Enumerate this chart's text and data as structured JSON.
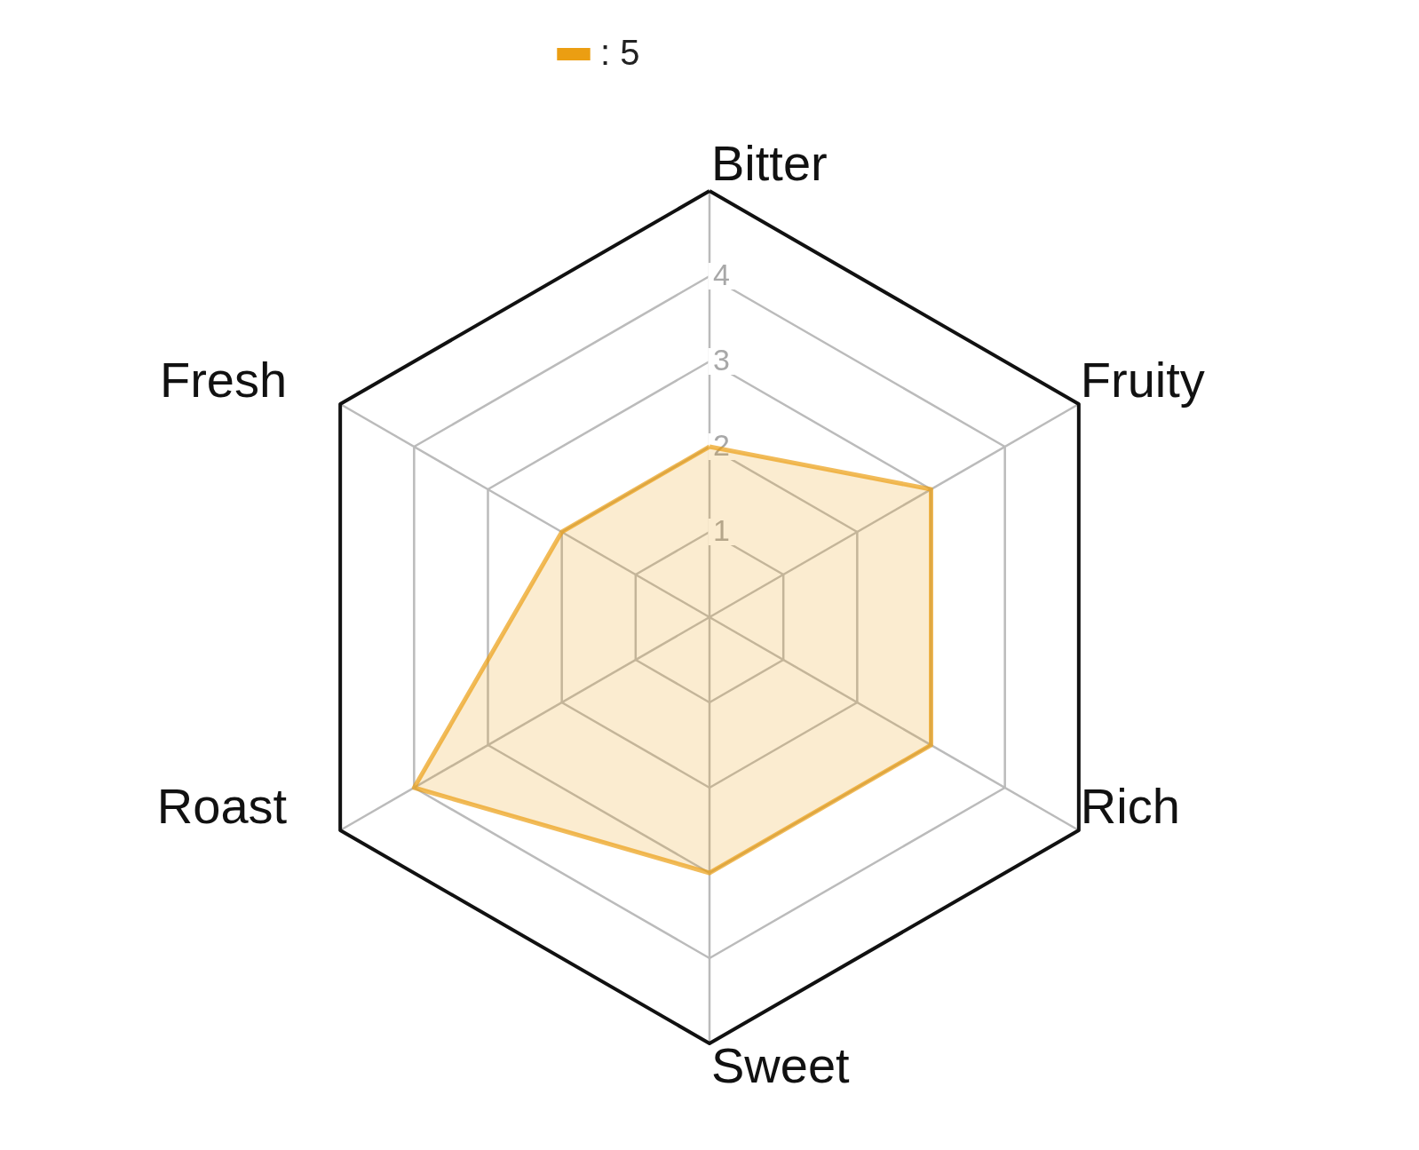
{
  "chart_data": {
    "type": "radar",
    "categories": [
      "Bitter",
      "Fruity",
      "Rich",
      "Sweet",
      "Roast",
      "Fresh"
    ],
    "series": [
      {
        "name": ": 5",
        "color": "#eb9e12",
        "values": [
          2,
          3,
          3,
          3,
          4,
          2
        ]
      }
    ],
    "ylim": [
      0,
      5
    ],
    "yticks": [
      1,
      2,
      3,
      4
    ],
    "grid": true,
    "legend": "top"
  }
}
